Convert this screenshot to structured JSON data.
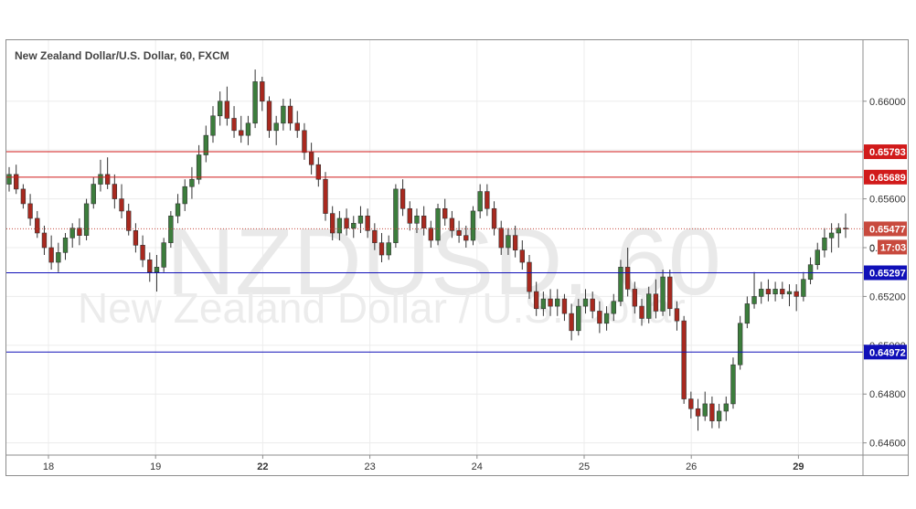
{
  "chart_title": "New Zealand Dollar/U.S. Dollar, 60, FXCM",
  "watermark": {
    "symbol": "NZDUSD, 60",
    "name": "New Zealand Dollar / U.S. Dollar"
  },
  "colors": {
    "up": "#3c7d3c",
    "down": "#a8291f",
    "resistance": "#d11a1a",
    "support": "#1010b8",
    "last_price": "#c84a3e",
    "countdown_bg": "#c84a3e"
  },
  "countdown": {
    "prefix": "0",
    "value": "17:03"
  },
  "chart_data": {
    "type": "candlestick",
    "y_axis": {
      "min": 0.6455,
      "max": 0.6625,
      "ticks": [
        "0.64600",
        "0.64800",
        "0.65000",
        "0.65200",
        "0.65400",
        "0.65600",
        "0.65800",
        "0.66000"
      ]
    },
    "x_axis": {
      "ticks": [
        {
          "label": "18",
          "bold": false
        },
        {
          "label": "19",
          "bold": false
        },
        {
          "label": "22",
          "bold": true
        },
        {
          "label": "23",
          "bold": false
        },
        {
          "label": "24",
          "bold": false
        },
        {
          "label": "25",
          "bold": false
        },
        {
          "label": "26",
          "bold": false
        },
        {
          "label": "29",
          "bold": true
        }
      ]
    },
    "horizontal_lines": [
      {
        "label": "0.65793",
        "value": 0.65793,
        "role": "resistance"
      },
      {
        "label": "0.65689",
        "value": 0.65689,
        "role": "resistance"
      },
      {
        "label": "0.65297",
        "value": 0.65297,
        "role": "support"
      },
      {
        "label": "0.64972",
        "value": 0.64972,
        "role": "support"
      }
    ],
    "last_price": {
      "label": "0.65477",
      "value": 0.65477
    },
    "candles": [
      [
        0.6566,
        0.6573,
        0.6563,
        0.657
      ],
      [
        0.657,
        0.6574,
        0.6562,
        0.6564
      ],
      [
        0.6564,
        0.6566,
        0.6556,
        0.6558
      ],
      [
        0.6558,
        0.6562,
        0.6549,
        0.6552
      ],
      [
        0.6552,
        0.6555,
        0.6544,
        0.6546
      ],
      [
        0.6546,
        0.6549,
        0.6537,
        0.654
      ],
      [
        0.654,
        0.6545,
        0.6531,
        0.6534
      ],
      [
        0.6534,
        0.6542,
        0.653,
        0.6538
      ],
      [
        0.6538,
        0.6546,
        0.6535,
        0.6544
      ],
      [
        0.6544,
        0.655,
        0.654,
        0.6548
      ],
      [
        0.6548,
        0.6552,
        0.6541,
        0.6545
      ],
      [
        0.6545,
        0.656,
        0.6543,
        0.6558
      ],
      [
        0.6558,
        0.6569,
        0.6556,
        0.6566
      ],
      [
        0.6566,
        0.6576,
        0.6563,
        0.657
      ],
      [
        0.657,
        0.6577,
        0.6564,
        0.6566
      ],
      [
        0.6566,
        0.657,
        0.6556,
        0.656
      ],
      [
        0.656,
        0.6566,
        0.6552,
        0.6555
      ],
      [
        0.6555,
        0.6558,
        0.6545,
        0.6547
      ],
      [
        0.6547,
        0.655,
        0.6538,
        0.6541
      ],
      [
        0.6541,
        0.6545,
        0.6532,
        0.6535
      ],
      [
        0.6535,
        0.6538,
        0.6526,
        0.653
      ],
      [
        0.653,
        0.6537,
        0.6522,
        0.6532
      ],
      [
        0.6532,
        0.6544,
        0.653,
        0.6542
      ],
      [
        0.6542,
        0.6555,
        0.654,
        0.6553
      ],
      [
        0.6553,
        0.6562,
        0.655,
        0.6558
      ],
      [
        0.6558,
        0.6568,
        0.6555,
        0.6565
      ],
      [
        0.6565,
        0.6573,
        0.656,
        0.6568
      ],
      [
        0.6568,
        0.6582,
        0.6566,
        0.6578
      ],
      [
        0.6578,
        0.659,
        0.6575,
        0.6586
      ],
      [
        0.6586,
        0.6598,
        0.6583,
        0.6594
      ],
      [
        0.6594,
        0.6604,
        0.659,
        0.66
      ],
      [
        0.66,
        0.6606,
        0.659,
        0.6593
      ],
      [
        0.6593,
        0.6598,
        0.6585,
        0.6588
      ],
      [
        0.6588,
        0.6594,
        0.6583,
        0.6586
      ],
      [
        0.6586,
        0.6594,
        0.6582,
        0.6591
      ],
      [
        0.6591,
        0.6613,
        0.6589,
        0.6608
      ],
      [
        0.6608,
        0.661,
        0.6596,
        0.66
      ],
      [
        0.66,
        0.6602,
        0.6585,
        0.6588
      ],
      [
        0.6588,
        0.6594,
        0.6582,
        0.6591
      ],
      [
        0.6591,
        0.6601,
        0.6588,
        0.6598
      ],
      [
        0.6598,
        0.6601,
        0.6588,
        0.6591
      ],
      [
        0.6591,
        0.6596,
        0.6585,
        0.6588
      ],
      [
        0.6588,
        0.6591,
        0.6576,
        0.6579
      ],
      [
        0.6579,
        0.6583,
        0.657,
        0.6574
      ],
      [
        0.6574,
        0.6577,
        0.6565,
        0.6568
      ],
      [
        0.6568,
        0.6571,
        0.6551,
        0.6554
      ],
      [
        0.6554,
        0.6557,
        0.6543,
        0.6546
      ],
      [
        0.6546,
        0.6555,
        0.6543,
        0.6552
      ],
      [
        0.6552,
        0.6556,
        0.6545,
        0.6548
      ],
      [
        0.6548,
        0.6553,
        0.6544,
        0.655
      ],
      [
        0.655,
        0.6557,
        0.6546,
        0.6553
      ],
      [
        0.6553,
        0.6556,
        0.6544,
        0.6547
      ],
      [
        0.6547,
        0.655,
        0.6539,
        0.6542
      ],
      [
        0.6542,
        0.6546,
        0.6534,
        0.6537
      ],
      [
        0.6537,
        0.6545,
        0.6535,
        0.6542
      ],
      [
        0.6542,
        0.6566,
        0.654,
        0.6564
      ],
      [
        0.6564,
        0.6568,
        0.6553,
        0.6556
      ],
      [
        0.6556,
        0.6559,
        0.6547,
        0.655
      ],
      [
        0.655,
        0.6556,
        0.6546,
        0.6553
      ],
      [
        0.6553,
        0.6557,
        0.6545,
        0.6548
      ],
      [
        0.6548,
        0.6551,
        0.654,
        0.6543
      ],
      [
        0.6543,
        0.6558,
        0.6541,
        0.6556
      ],
      [
        0.6556,
        0.656,
        0.6549,
        0.6552
      ],
      [
        0.6552,
        0.6555,
        0.6544,
        0.6547
      ],
      [
        0.6547,
        0.6551,
        0.6542,
        0.6545
      ],
      [
        0.6545,
        0.6549,
        0.654,
        0.6543
      ],
      [
        0.6543,
        0.6557,
        0.6541,
        0.6555
      ],
      [
        0.6555,
        0.6566,
        0.6552,
        0.6563
      ],
      [
        0.6563,
        0.6566,
        0.6553,
        0.6556
      ],
      [
        0.6556,
        0.6559,
        0.6545,
        0.6548
      ],
      [
        0.6548,
        0.6551,
        0.6537,
        0.654
      ],
      [
        0.654,
        0.6548,
        0.6537,
        0.6545
      ],
      [
        0.6545,
        0.6549,
        0.6536,
        0.6539
      ],
      [
        0.6539,
        0.6543,
        0.6531,
        0.6534
      ],
      [
        0.6534,
        0.6537,
        0.6519,
        0.6522
      ],
      [
        0.6522,
        0.6526,
        0.6512,
        0.6515
      ],
      [
        0.6515,
        0.6522,
        0.6512,
        0.6519
      ],
      [
        0.6519,
        0.6523,
        0.6512,
        0.6516
      ],
      [
        0.6516,
        0.6523,
        0.6512,
        0.6519
      ],
      [
        0.6519,
        0.6521,
        0.651,
        0.6513
      ],
      [
        0.6513,
        0.6517,
        0.6502,
        0.6506
      ],
      [
        0.6506,
        0.6519,
        0.6504,
        0.6516
      ],
      [
        0.6516,
        0.6523,
        0.6513,
        0.6519
      ],
      [
        0.6519,
        0.6522,
        0.6511,
        0.6514
      ],
      [
        0.6514,
        0.6518,
        0.6505,
        0.6509
      ],
      [
        0.6509,
        0.6516,
        0.6506,
        0.6513
      ],
      [
        0.6513,
        0.6521,
        0.651,
        0.6518
      ],
      [
        0.6518,
        0.6535,
        0.6516,
        0.6532
      ],
      [
        0.6532,
        0.654,
        0.652,
        0.6523
      ],
      [
        0.6523,
        0.6526,
        0.6513,
        0.6516
      ],
      [
        0.6516,
        0.6519,
        0.6508,
        0.6511
      ],
      [
        0.6511,
        0.6524,
        0.6509,
        0.6521
      ],
      [
        0.6521,
        0.6527,
        0.6511,
        0.6514
      ],
      [
        0.6514,
        0.6531,
        0.6512,
        0.6528
      ],
      [
        0.6528,
        0.6531,
        0.6512,
        0.6515
      ],
      [
        0.6515,
        0.6518,
        0.6506,
        0.651
      ],
      [
        0.651,
        0.6512,
        0.6476,
        0.6478
      ],
      [
        0.6478,
        0.6481,
        0.647,
        0.6474
      ],
      [
        0.6474,
        0.6478,
        0.6465,
        0.6471
      ],
      [
        0.6471,
        0.6481,
        0.6469,
        0.6476
      ],
      [
        0.6476,
        0.6479,
        0.6466,
        0.6469
      ],
      [
        0.6469,
        0.6476,
        0.6466,
        0.6473
      ],
      [
        0.6473,
        0.6479,
        0.6469,
        0.6476
      ],
      [
        0.6476,
        0.6495,
        0.6474,
        0.6492
      ],
      [
        0.6492,
        0.6512,
        0.649,
        0.6509
      ],
      [
        0.6509,
        0.652,
        0.6507,
        0.6517
      ],
      [
        0.6517,
        0.653,
        0.6515,
        0.652
      ],
      [
        0.652,
        0.6526,
        0.6517,
        0.6523
      ],
      [
        0.6523,
        0.6527,
        0.6518,
        0.6521
      ],
      [
        0.6521,
        0.6526,
        0.6518,
        0.6523
      ],
      [
        0.6523,
        0.6526,
        0.6519,
        0.6521
      ],
      [
        0.6521,
        0.6525,
        0.6516,
        0.6522
      ],
      [
        0.6522,
        0.6525,
        0.6514,
        0.652
      ],
      [
        0.652,
        0.653,
        0.6518,
        0.6527
      ],
      [
        0.6527,
        0.6536,
        0.6525,
        0.6533
      ],
      [
        0.6533,
        0.6542,
        0.6531,
        0.6539
      ],
      [
        0.6539,
        0.6548,
        0.6536,
        0.6544
      ],
      [
        0.6544,
        0.655,
        0.6538,
        0.6546
      ],
      [
        0.6546,
        0.655,
        0.654,
        0.6548
      ],
      [
        0.6548,
        0.6554,
        0.6544,
        0.65477
      ]
    ]
  }
}
